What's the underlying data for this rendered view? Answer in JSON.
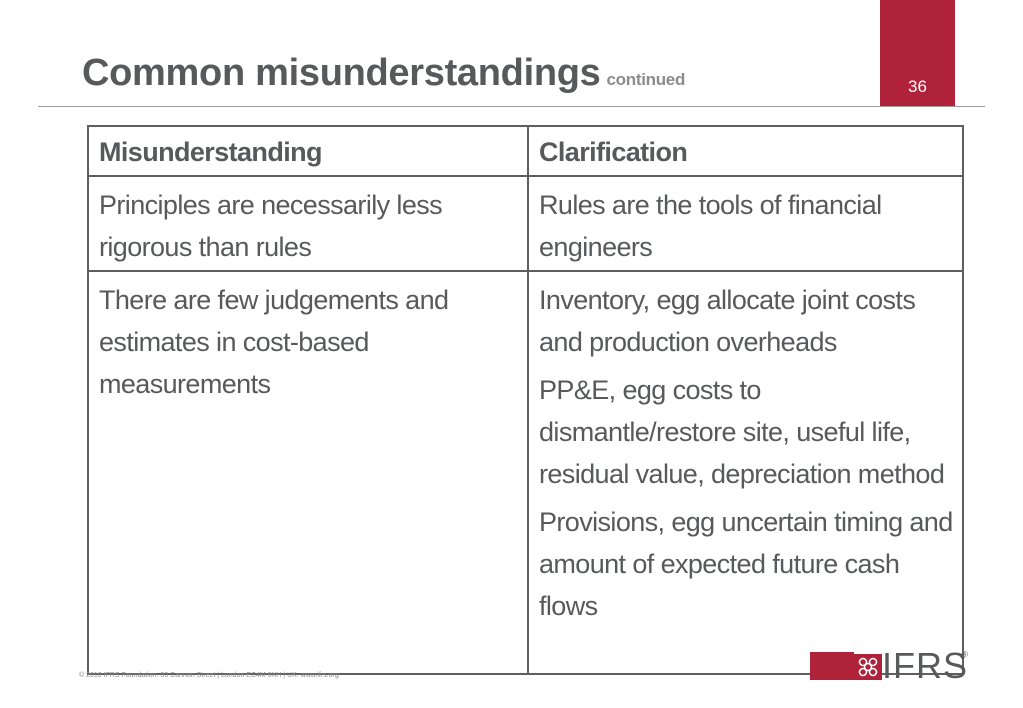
{
  "header": {
    "title": "Common misunderstandings",
    "subtitle": "continued",
    "slide_number": "36"
  },
  "table": {
    "headers": [
      "Misunderstanding",
      "Clarification"
    ],
    "rows": [
      {
        "misunderstanding": "Principles are necessarily less rigorous than rules",
        "clarification": [
          "Rules are the tools of financial engineers"
        ]
      },
      {
        "misunderstanding": "There are few judgements and estimates in cost-based measurements",
        "clarification": [
          "Inventory, egg allocate joint costs and production overheads",
          "PP&E, egg costs to dismantle/restore site, useful life, residual value, depreciation method",
          "Provisions, egg uncertain timing and amount of expected future cash flows"
        ]
      }
    ]
  },
  "footer": {
    "text": "© 2010 IFRS Foundation.  30 Cannon Street  |  London EC4M 6XH  |  UK.  www.ifrs.org"
  },
  "logo": {
    "text": "IFRS",
    "registered": "®",
    "brand_color": "#b0223a"
  }
}
